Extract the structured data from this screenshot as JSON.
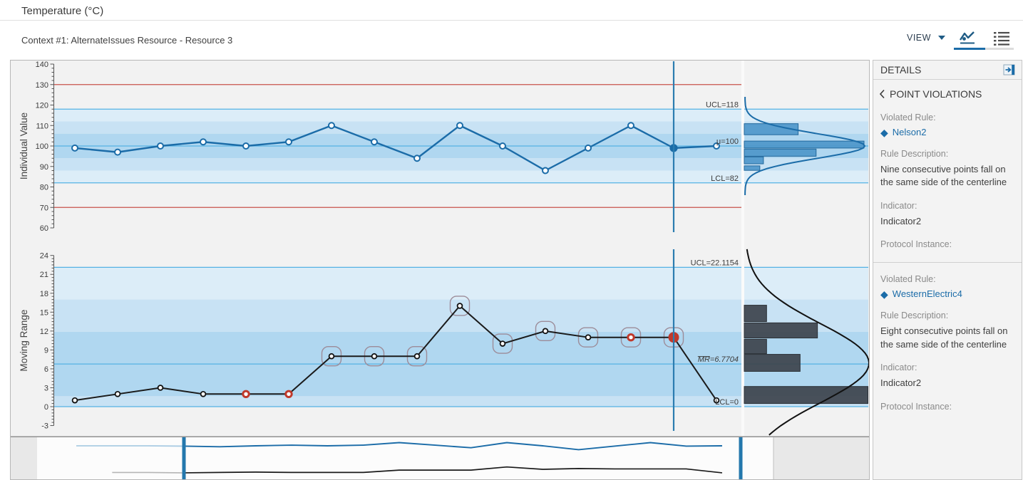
{
  "header": {
    "title": "Temperature (°C)"
  },
  "toolbar": {
    "context": "Context #1: AlternateIssues Resource - Resource 3",
    "view_label": "VIEW"
  },
  "icons": {
    "diamond": "◆"
  },
  "details": {
    "title": "DETAILS",
    "subtitle": "POINT VIOLATIONS",
    "labels": {
      "violated_rule": "Violated Rule:",
      "rule_description": "Rule Description:",
      "indicator": "Indicator:",
      "protocol_instance": "Protocol Instance:"
    },
    "violations": [
      {
        "rule": "Nelson2",
        "description": "Nine consecutive points fall on the same side of the centerline",
        "indicator": "Indicator2",
        "protocol_instance": ""
      },
      {
        "rule": "WesternElectric4",
        "description": "Eight consecutive points fall on the same side of the centerline",
        "indicator": "Indicator2",
        "protocol_instance": ""
      }
    ]
  },
  "colors": {
    "accent": "#1b6ca8",
    "series_individual": "#1b6ca8",
    "series_mr": "#1a1a1a",
    "limit_line": "#55b2e4",
    "spec_line": "#c9534b",
    "zone_light": "#dcedf8",
    "zone_mid": "#c8e2f4",
    "zone_dark": "#b0d7f0",
    "violation_red": "#c0392b",
    "ring": "#9c8c99",
    "hist_blue": "#4e97ca",
    "hist_blue_border": "#22689c",
    "hist_dark": "#3d434c",
    "selection_line": "#2b7cb0",
    "axis": "#555555",
    "tick_text": "#3c3c3c",
    "nav_handle": "#2478ad",
    "nav_faded_blue": "#a9cbe3",
    "nav_faded_gray": "#b5b5b5"
  },
  "chart_data": [
    {
      "type": "line",
      "name": "individuals-chart",
      "ylabel": "Individual Value",
      "ylim": [
        60,
        140
      ],
      "ytick_major": 10,
      "ytick_minor": 2,
      "values": [
        99,
        97,
        100,
        102,
        100,
        102,
        110,
        102,
        94,
        110,
        100,
        88,
        99,
        110,
        99,
        100
      ],
      "selected_index": 14,
      "centerline": 100,
      "ucl": 118,
      "lcl": 82,
      "spec_limits": [
        130,
        70
      ],
      "annotations": [
        {
          "text": "UCL=118",
          "value": 118
        },
        {
          "text": "μ=100",
          "value": 100
        },
        {
          "text": "LCL=82",
          "value": 82
        }
      ],
      "histogram": {
        "orientation": "horizontal",
        "bins": [
          {
            "lo": 105.5,
            "hi": 110.9,
            "frac": 0.45
          },
          {
            "lo": 99.0,
            "hi": 102.4,
            "frac": 1.0
          },
          {
            "lo": 95.0,
            "hi": 98.5,
            "frac": 0.6
          },
          {
            "lo": 91.3,
            "hi": 94.7,
            "frac": 0.16
          },
          {
            "lo": 88.1,
            "hi": 90.3,
            "frac": 0.13
          }
        ],
        "curve": {
          "mu": 100,
          "sigma": 6
        }
      }
    },
    {
      "type": "line",
      "name": "moving-range-chart",
      "ylabel": "Moving Range",
      "ylim": [
        -3,
        24
      ],
      "ytick_major": 3,
      "ytick_minor": 0.5,
      "values": [
        1,
        2,
        3,
        2,
        2,
        2,
        8,
        8,
        8,
        16,
        10,
        12,
        11,
        11,
        11,
        1
      ],
      "selected_index": 14,
      "red_point_indices": [
        4,
        5,
        13
      ],
      "ringed_indices": [
        6,
        7,
        8,
        9,
        10,
        11,
        12,
        13,
        14
      ],
      "centerline": 6.7704,
      "ucl": 22.1154,
      "lcl": 0,
      "annotations": [
        {
          "text": "UCL=22.1154",
          "value": 22.1154
        },
        {
          "text": "MR=6.7704",
          "value": 6.7704,
          "overline_chars": 2
        },
        {
          "text": "LCL=0",
          "value": 0
        }
      ],
      "histogram": {
        "orientation": "horizontal",
        "bins": [
          {
            "lo": 13.5,
            "hi": 16.1,
            "frac": 0.18
          },
          {
            "lo": 10.9,
            "hi": 13.3,
            "frac": 0.59
          },
          {
            "lo": 8.4,
            "hi": 10.7,
            "frac": 0.18
          },
          {
            "lo": 5.6,
            "hi": 8.3,
            "frac": 0.45
          },
          {
            "lo": 0.5,
            "hi": 3.2,
            "frac": 1.0
          }
        ],
        "curve": {
          "mu": 6.9,
          "sigma": 6.3
        }
      }
    },
    {
      "type": "navigator",
      "name": "overview-navigator",
      "individual_pre_values": [
        100,
        100,
        100
      ],
      "mr_pre_values": [
        2,
        2
      ],
      "window": {
        "start_index": 0,
        "end_index": 15
      }
    }
  ]
}
